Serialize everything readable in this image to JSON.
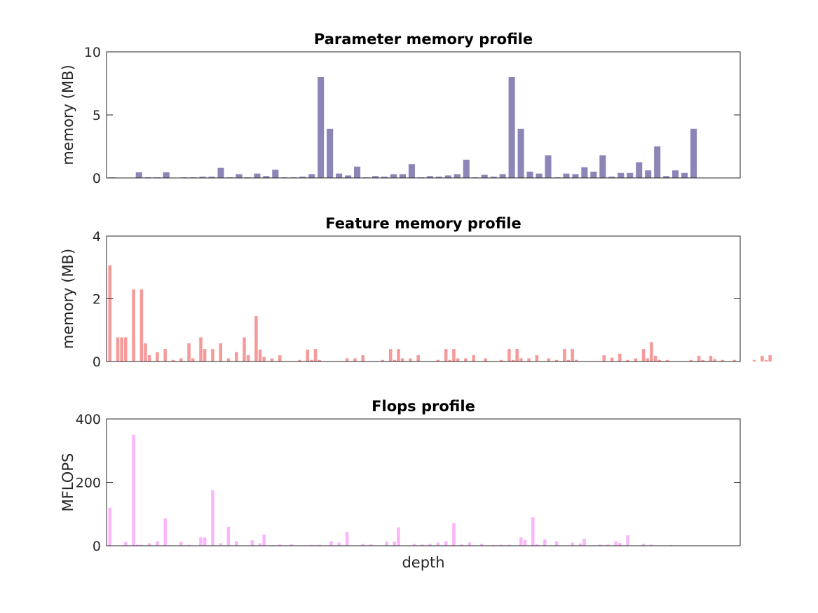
{
  "chart_data": [
    {
      "type": "bar",
      "title": "Parameter memory profile",
      "xlabel": "",
      "ylabel": "memory (MB)",
      "ylim": [
        0,
        10
      ],
      "yticks": [
        0,
        5,
        10
      ],
      "color": "#8b85b8",
      "values": [
        0.05,
        0,
        0,
        0.45,
        0.05,
        0.05,
        0.45,
        0,
        0.05,
        0.05,
        0.1,
        0.1,
        0.8,
        0.05,
        0.3,
        0.05,
        0.35,
        0.15,
        0.65,
        0.05,
        0.05,
        0.1,
        0.3,
        8.0,
        3.9,
        0.35,
        0.2,
        0.9,
        0.05,
        0.15,
        0.1,
        0.3,
        0.3,
        1.1,
        0.05,
        0.15,
        0.1,
        0.2,
        0.3,
        1.45,
        0.05,
        0.25,
        0.1,
        0.3,
        8.0,
        3.9,
        0.5,
        0.35,
        1.8,
        0.05,
        0.35,
        0.3,
        0.85,
        0.5,
        1.8,
        0.1,
        0.4,
        0.4,
        1.25,
        0.6,
        2.5,
        0.15,
        0.6,
        0.4,
        3.9,
        0,
        0,
        0,
        0,
        0,
        0
      ]
    },
    {
      "type": "bar",
      "title": "Feature memory profile",
      "xlabel": "",
      "ylabel": "memory (MB)",
      "ylim": [
        0,
        4
      ],
      "yticks": [
        0,
        2,
        4
      ],
      "color": "#f59a99",
      "values": [
        3.07,
        0,
        0.77,
        0.77,
        0.77,
        0,
        2.3,
        0,
        2.3,
        0.58,
        0.2,
        0,
        0.3,
        0,
        0.4,
        0,
        0.05,
        0,
        0.1,
        0,
        0.58,
        0.1,
        0,
        0.77,
        0.4,
        0,
        0.4,
        0,
        0.58,
        0,
        0.1,
        0,
        0.3,
        0,
        0.77,
        0.2,
        0,
        1.45,
        0.38,
        0.15,
        0,
        0.1,
        0,
        0.2,
        0,
        0,
        0,
        0,
        0.05,
        0,
        0.38,
        0.05,
        0.4,
        0.05,
        0,
        0,
        0,
        0,
        0,
        0,
        0.1,
        0,
        0.1,
        0,
        0.2,
        0,
        0,
        0,
        0,
        0.05,
        0,
        0.4,
        0.05,
        0.4,
        0.1,
        0,
        0.1,
        0,
        0.2,
        0,
        0,
        0,
        0,
        0.05,
        0,
        0.4,
        0.05,
        0.4,
        0.1,
        0,
        0.1,
        0,
        0.2,
        0,
        0,
        0.1,
        0,
        0,
        0,
        0.05,
        0,
        0.4,
        0.05,
        0.4,
        0.1,
        0,
        0.1,
        0,
        0.2,
        0,
        0,
        0.1,
        0,
        0.05,
        0,
        0.4,
        0.05,
        0.4,
        0.05,
        0,
        0,
        0,
        0,
        0,
        0,
        0.2,
        0,
        0.12,
        0,
        0.25,
        0,
        0.05,
        0,
        0.1,
        0,
        0.4,
        0.1,
        0.62,
        0.18,
        0.05,
        0,
        0.05,
        0,
        0,
        0,
        0,
        0,
        0.05,
        0,
        0.18,
        0.05,
        0,
        0.18,
        0.08,
        0,
        0.05,
        0,
        0,
        0.05,
        0,
        0,
        0,
        0,
        0.05,
        0,
        0.18,
        0.05,
        0.2,
        0,
        0,
        0
      ]
    },
    {
      "type": "bar",
      "title": "Flops profile",
      "xlabel": "depth",
      "ylabel": "MFLOPS",
      "ylim": [
        0,
        400
      ],
      "yticks": [
        0,
        200,
        400
      ],
      "color": "#fbb5fa",
      "values": [
        120,
        0,
        0,
        0,
        12,
        0,
        350,
        3,
        3,
        0,
        8,
        0,
        14,
        0,
        86,
        0,
        0,
        0,
        12,
        0,
        3,
        0,
        0,
        26,
        26,
        0,
        175,
        0,
        8,
        0,
        60,
        0,
        14,
        0,
        0,
        0,
        17,
        0,
        8,
        35,
        0,
        2,
        0,
        4,
        0,
        0,
        5,
        0,
        0,
        0,
        0,
        3,
        0,
        3,
        0,
        0,
        14,
        0,
        10,
        0,
        44,
        0,
        0,
        0,
        6,
        0,
        5,
        0,
        0,
        0,
        13,
        0,
        13,
        58,
        0,
        0,
        0,
        6,
        0,
        4,
        0,
        6,
        0,
        10,
        0,
        14,
        0,
        72,
        0,
        4,
        0,
        10,
        0,
        0,
        6,
        0,
        0,
        2,
        0,
        3,
        0,
        3,
        0,
        0,
        26,
        18,
        0,
        90,
        5,
        0,
        20,
        0,
        0,
        14,
        0,
        0,
        0,
        10,
        0,
        7,
        22,
        0,
        0,
        0,
        4,
        0,
        4,
        0,
        14,
        9,
        0,
        33,
        0,
        0,
        0,
        6,
        0,
        4,
        0,
        0,
        0,
        0,
        2
      ]
    }
  ]
}
